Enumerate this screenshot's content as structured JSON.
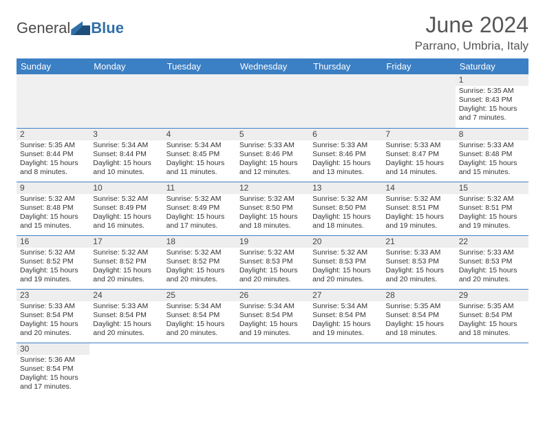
{
  "logo": {
    "word1": "General",
    "word2": "Blue"
  },
  "title": "June 2024",
  "location": "Parrano, Umbria, Italy",
  "dayHeaders": [
    "Sunday",
    "Monday",
    "Tuesday",
    "Wednesday",
    "Thursday",
    "Friday",
    "Saturday"
  ],
  "colors": {
    "header_bg": "#3b7fc4",
    "header_text": "#ffffff",
    "daynum_bg": "#eeeeee",
    "rule": "#3b7fc4",
    "logo_blue": "#2f6fa8",
    "text": "#333333"
  },
  "leadingBlanks": 6,
  "days": [
    {
      "n": 1,
      "sunrise": "5:35 AM",
      "sunset": "8:43 PM",
      "dh": 15,
      "dm": 7
    },
    {
      "n": 2,
      "sunrise": "5:35 AM",
      "sunset": "8:44 PM",
      "dh": 15,
      "dm": 8
    },
    {
      "n": 3,
      "sunrise": "5:34 AM",
      "sunset": "8:44 PM",
      "dh": 15,
      "dm": 10
    },
    {
      "n": 4,
      "sunrise": "5:34 AM",
      "sunset": "8:45 PM",
      "dh": 15,
      "dm": 11
    },
    {
      "n": 5,
      "sunrise": "5:33 AM",
      "sunset": "8:46 PM",
      "dh": 15,
      "dm": 12
    },
    {
      "n": 6,
      "sunrise": "5:33 AM",
      "sunset": "8:46 PM",
      "dh": 15,
      "dm": 13
    },
    {
      "n": 7,
      "sunrise": "5:33 AM",
      "sunset": "8:47 PM",
      "dh": 15,
      "dm": 14
    },
    {
      "n": 8,
      "sunrise": "5:33 AM",
      "sunset": "8:48 PM",
      "dh": 15,
      "dm": 15
    },
    {
      "n": 9,
      "sunrise": "5:32 AM",
      "sunset": "8:48 PM",
      "dh": 15,
      "dm": 15
    },
    {
      "n": 10,
      "sunrise": "5:32 AM",
      "sunset": "8:49 PM",
      "dh": 15,
      "dm": 16
    },
    {
      "n": 11,
      "sunrise": "5:32 AM",
      "sunset": "8:49 PM",
      "dh": 15,
      "dm": 17
    },
    {
      "n": 12,
      "sunrise": "5:32 AM",
      "sunset": "8:50 PM",
      "dh": 15,
      "dm": 18
    },
    {
      "n": 13,
      "sunrise": "5:32 AM",
      "sunset": "8:50 PM",
      "dh": 15,
      "dm": 18
    },
    {
      "n": 14,
      "sunrise": "5:32 AM",
      "sunset": "8:51 PM",
      "dh": 15,
      "dm": 19
    },
    {
      "n": 15,
      "sunrise": "5:32 AM",
      "sunset": "8:51 PM",
      "dh": 15,
      "dm": 19
    },
    {
      "n": 16,
      "sunrise": "5:32 AM",
      "sunset": "8:52 PM",
      "dh": 15,
      "dm": 19
    },
    {
      "n": 17,
      "sunrise": "5:32 AM",
      "sunset": "8:52 PM",
      "dh": 15,
      "dm": 20
    },
    {
      "n": 18,
      "sunrise": "5:32 AM",
      "sunset": "8:52 PM",
      "dh": 15,
      "dm": 20
    },
    {
      "n": 19,
      "sunrise": "5:32 AM",
      "sunset": "8:53 PM",
      "dh": 15,
      "dm": 20
    },
    {
      "n": 20,
      "sunrise": "5:32 AM",
      "sunset": "8:53 PM",
      "dh": 15,
      "dm": 20
    },
    {
      "n": 21,
      "sunrise": "5:33 AM",
      "sunset": "8:53 PM",
      "dh": 15,
      "dm": 20
    },
    {
      "n": 22,
      "sunrise": "5:33 AM",
      "sunset": "8:53 PM",
      "dh": 15,
      "dm": 20
    },
    {
      "n": 23,
      "sunrise": "5:33 AM",
      "sunset": "8:54 PM",
      "dh": 15,
      "dm": 20
    },
    {
      "n": 24,
      "sunrise": "5:33 AM",
      "sunset": "8:54 PM",
      "dh": 15,
      "dm": 20
    },
    {
      "n": 25,
      "sunrise": "5:34 AM",
      "sunset": "8:54 PM",
      "dh": 15,
      "dm": 20
    },
    {
      "n": 26,
      "sunrise": "5:34 AM",
      "sunset": "8:54 PM",
      "dh": 15,
      "dm": 19
    },
    {
      "n": 27,
      "sunrise": "5:34 AM",
      "sunset": "8:54 PM",
      "dh": 15,
      "dm": 19
    },
    {
      "n": 28,
      "sunrise": "5:35 AM",
      "sunset": "8:54 PM",
      "dh": 15,
      "dm": 18
    },
    {
      "n": 29,
      "sunrise": "5:35 AM",
      "sunset": "8:54 PM",
      "dh": 15,
      "dm": 18
    },
    {
      "n": 30,
      "sunrise": "5:36 AM",
      "sunset": "8:54 PM",
      "dh": 15,
      "dm": 17
    }
  ],
  "labels": {
    "sunrise": "Sunrise:",
    "sunset": "Sunset:",
    "daylight": "Daylight:",
    "hours": "hours",
    "and": "and",
    "minutes": "minutes."
  }
}
